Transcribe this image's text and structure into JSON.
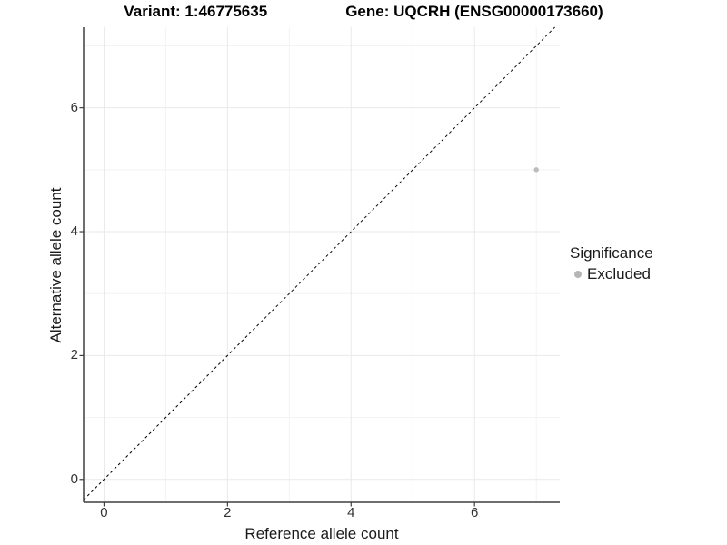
{
  "chart_data": {
    "type": "scatter",
    "title_left": "Variant: 1:46775635",
    "title_right": "Gene: UQCRH (ENSG00000173660)",
    "xlabel": "Reference allele count",
    "ylabel": "Alternative allele count",
    "xlim": [
      -0.33,
      7.38
    ],
    "ylim": [
      -0.37,
      7.3
    ],
    "x_tick_values": [
      0,
      2,
      4,
      6
    ],
    "x_tick_labels": [
      "0",
      "2",
      "4",
      "6"
    ],
    "y_tick_values": [
      0,
      2,
      4,
      6
    ],
    "y_tick_labels": [
      "0",
      "2",
      "4",
      "6"
    ],
    "grid": {
      "positions": [
        0,
        1,
        2,
        3,
        4,
        5,
        6,
        7
      ],
      "major": [
        0,
        2,
        4,
        6
      ]
    },
    "identity_line": {
      "style": "dashed",
      "equation": "y = x",
      "color": "#000000"
    },
    "points": [
      {
        "x": 7,
        "y": 5,
        "significance": "Excluded",
        "color": "#bcbcbc"
      }
    ],
    "legend": {
      "title": "Significance",
      "items": [
        {
          "label": "Excluded",
          "color": "#b6b6b6",
          "shape": "circle"
        }
      ]
    },
    "colors": {
      "background": "#ffffff",
      "grid_major": "#e9e9e9",
      "grid_minor": "#f3f3f3",
      "axis": "#3f3f3f",
      "tick_text": "#333333",
      "label_text": "#1a1a1a"
    }
  }
}
